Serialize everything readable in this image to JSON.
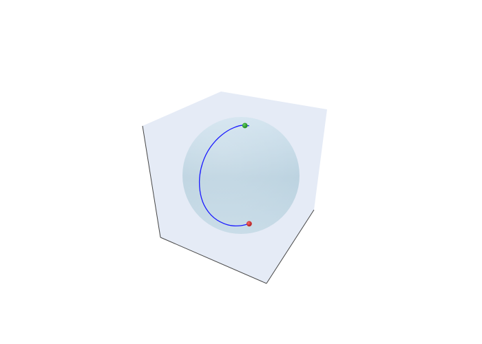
{
  "chart_data": {
    "type": "scatter3d",
    "title": "",
    "scene": {
      "show_tick_labels": false,
      "show_axis_titles": false,
      "pane_color": "#e5ebf6",
      "axis_line_color": "#444444"
    },
    "surface": {
      "shape": "sphere",
      "radius": 1,
      "color": "#b3cfe0",
      "opacity": 0.55
    },
    "trajectory": {
      "color": "#1a1aff",
      "points": [
        {
          "x": 0.2,
          "y": 0.13,
          "z": 0.97
        },
        {
          "x": 0.11,
          "y": 0.17,
          "z": 0.98
        },
        {
          "x": -0.02,
          "y": 0.08,
          "z": 0.97
        },
        {
          "x": -0.28,
          "y": 0.22,
          "z": 0.9
        },
        {
          "x": -0.55,
          "y": 0.25,
          "z": 0.72
        },
        {
          "x": -0.78,
          "y": 0.24,
          "z": 0.45
        },
        {
          "x": -0.92,
          "y": 0.2,
          "z": 0.1
        },
        {
          "x": -0.93,
          "y": 0.16,
          "z": -0.25
        },
        {
          "x": -0.84,
          "y": 0.12,
          "z": -0.55
        },
        {
          "x": -0.62,
          "y": 0.08,
          "z": -0.8
        },
        {
          "x": -0.3,
          "y": 0.02,
          "z": -0.95
        },
        {
          "x": -0.02,
          "y": -0.04,
          "z": -0.97
        },
        {
          "x": 0.18,
          "y": -0.06,
          "z": -0.93
        }
      ]
    },
    "markers": [
      {
        "name": "start",
        "x": 0.11,
        "y": 0.17,
        "z": 0.98,
        "color": "#2ca02c"
      },
      {
        "name": "end",
        "x": 0.18,
        "y": -0.06,
        "z": -0.93,
        "color": "#d62728"
      }
    ]
  }
}
